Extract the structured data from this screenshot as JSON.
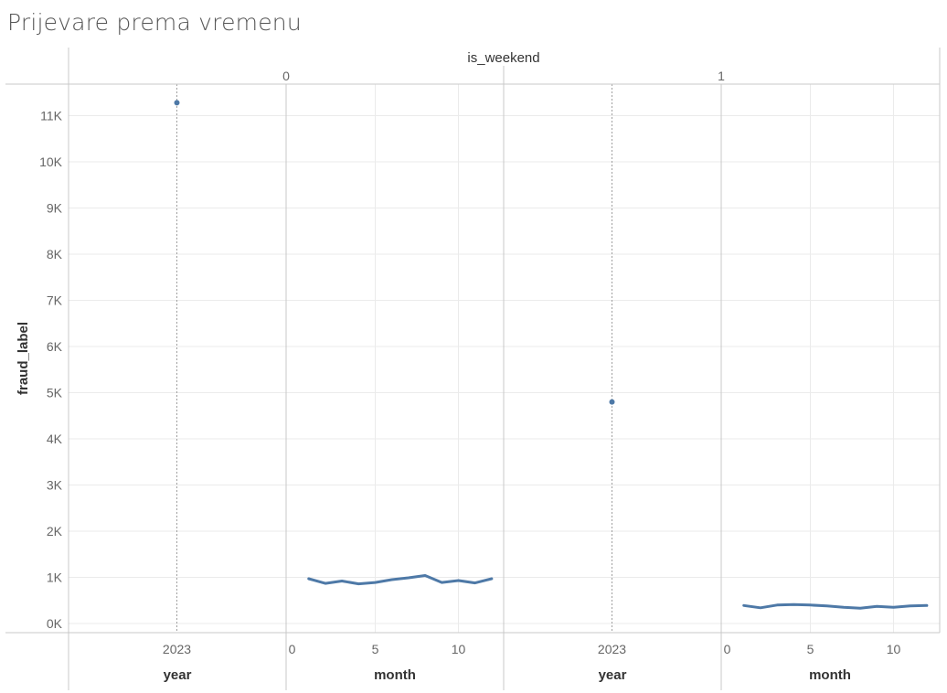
{
  "title": "Prijevare prema vremenu",
  "chart_data": {
    "type": "line",
    "column_field": "is_weekend",
    "column_values": [
      "0",
      "1"
    ],
    "ylabel": "fraud_label",
    "ylim": [
      0,
      11800
    ],
    "y_ticks": [
      0,
      1000,
      2000,
      3000,
      4000,
      5000,
      6000,
      7000,
      8000,
      9000,
      10000,
      11000
    ],
    "y_tick_labels": [
      "0K",
      "1K",
      "2K",
      "3K",
      "4K",
      "5K",
      "6K",
      "7K",
      "8K",
      "9K",
      "10K",
      "11K"
    ],
    "colors": {
      "mark": "#4e79a7",
      "grid": "#ebebeb",
      "divider": "#c8c8c8"
    },
    "panels": [
      {
        "is_weekend": "0",
        "xlabel": "year",
        "type": "scatter",
        "x_ticks": [
          2023
        ],
        "x": [
          2023
        ],
        "y": [
          11280
        ]
      },
      {
        "is_weekend": "0",
        "xlabel": "month",
        "type": "line",
        "x_ticks": [
          0,
          5,
          10
        ],
        "xlim": [
          0,
          12.5
        ],
        "x": [
          1,
          2,
          3,
          4,
          5,
          6,
          7,
          8,
          9,
          10,
          11,
          12
        ],
        "y": [
          970,
          870,
          920,
          860,
          890,
          950,
          990,
          1040,
          890,
          930,
          880,
          970
        ]
      },
      {
        "is_weekend": "1",
        "xlabel": "year",
        "type": "scatter",
        "x_ticks": [
          2023
        ],
        "x": [
          2023
        ],
        "y": [
          4800
        ]
      },
      {
        "is_weekend": "1",
        "xlabel": "month",
        "type": "line",
        "x_ticks": [
          0,
          5,
          10
        ],
        "xlim": [
          0,
          12.5
        ],
        "x": [
          1,
          2,
          3,
          4,
          5,
          6,
          7,
          8,
          9,
          10,
          11,
          12
        ],
        "y": [
          390,
          340,
          400,
          410,
          400,
          380,
          350,
          330,
          370,
          350,
          380,
          390
        ]
      }
    ]
  }
}
